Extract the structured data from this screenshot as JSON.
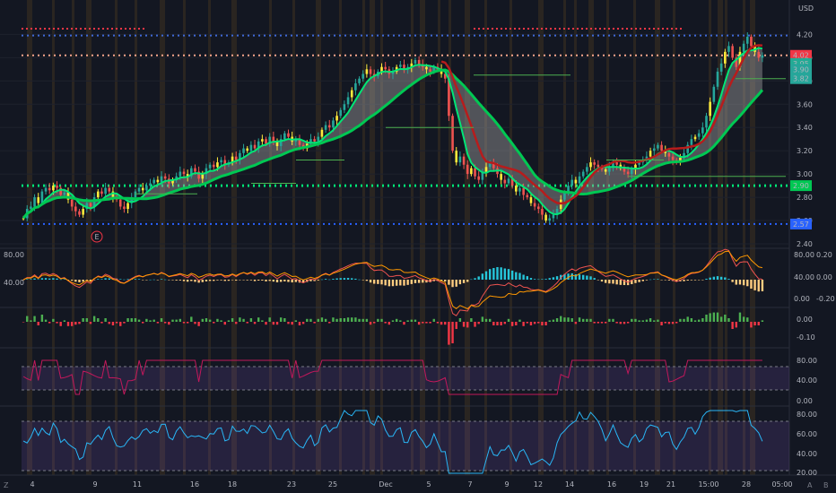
{
  "chart_data": {
    "type": "candlestick",
    "currency_label": "USD",
    "price_axis_ticks": [
      "4.20",
      "4.00",
      "3.80",
      "3.60",
      "3.40",
      "3.20",
      "3.00",
      "2.80",
      "2.60",
      "2.40"
    ],
    "price_tags": [
      {
        "label": "4.02",
        "value": 4.02,
        "color": "#f23645"
      },
      {
        "label": "3.95",
        "value": 3.95,
        "color": "#22ab94"
      },
      {
        "label": "3.90",
        "value": 3.9,
        "color": "#26a69a"
      },
      {
        "label": "3.82",
        "value": 3.82,
        "color": "#26a69a"
      },
      {
        "label": "2.90",
        "value": 2.9,
        "color": "#00c853"
      },
      {
        "label": "2.57",
        "value": 2.57,
        "color": "#2962ff"
      }
    ],
    "price_ylim": [
      2.4,
      4.28
    ],
    "candles_close": [
      2.62,
      2.7,
      2.72,
      2.8,
      2.75,
      2.85,
      2.88,
      2.86,
      2.9,
      2.88,
      2.82,
      2.84,
      2.78,
      2.72,
      2.68,
      2.65,
      2.7,
      2.75,
      2.72,
      2.8,
      2.85,
      2.83,
      2.88,
      2.85,
      2.8,
      2.78,
      2.72,
      2.7,
      2.75,
      2.8,
      2.85,
      2.88,
      2.86,
      2.9,
      2.92,
      2.95,
      2.93,
      2.98,
      2.96,
      2.92,
      2.95,
      2.98,
      3.02,
      3.0,
      2.98,
      3.05,
      3.02,
      2.96,
      3.0,
      3.05,
      3.08,
      3.06,
      3.1,
      3.12,
      3.08,
      3.1,
      3.15,
      3.12,
      3.18,
      3.22,
      3.2,
      3.25,
      3.22,
      3.28,
      3.3,
      3.26,
      3.32,
      3.28,
      3.24,
      3.3,
      3.35,
      3.32,
      3.28,
      3.3,
      3.25,
      3.22,
      3.26,
      3.3,
      3.28,
      3.32,
      3.38,
      3.42,
      3.4,
      3.46,
      3.5,
      3.55,
      3.6,
      3.66,
      3.72,
      3.78,
      3.82,
      3.86,
      3.9,
      3.86,
      3.84,
      3.88,
      3.92,
      3.9,
      3.86,
      3.88,
      3.92,
      3.94,
      3.9,
      3.92,
      3.95,
      3.98,
      3.94,
      3.92,
      3.9,
      3.88,
      3.92,
      3.9,
      3.86,
      3.82,
      3.5,
      3.2,
      3.1,
      3.15,
      3.08,
      3.0,
      3.05,
      2.98,
      2.95,
      3.02,
      3.06,
      3.1,
      3.05,
      3.0,
      2.95,
      2.92,
      2.96,
      2.9,
      2.85,
      2.88,
      2.82,
      2.8,
      2.75,
      2.72,
      2.7,
      2.65,
      2.6,
      2.62,
      2.65,
      2.7,
      2.78,
      2.84,
      2.9,
      2.95,
      2.92,
      2.98,
      3.02,
      3.06,
      3.1,
      3.08,
      3.06,
      3.04,
      3.02,
      3.06,
      3.1,
      3.08,
      3.05,
      3.02,
      3.0,
      3.04,
      3.08,
      3.1,
      3.12,
      3.15,
      3.2,
      3.22,
      3.25,
      3.2,
      3.18,
      3.15,
      3.12,
      3.1,
      3.14,
      3.18,
      3.25,
      3.3,
      3.32,
      3.35,
      3.4,
      3.5,
      3.62,
      3.75,
      3.88,
      3.95,
      4.05,
      4.1,
      4.0,
      3.92,
      4.05,
      4.12,
      4.18,
      4.1,
      4.05,
      4.0,
      4.02
    ],
    "series": [
      {
        "name": "ma-fast",
        "color": "#00e676"
      },
      {
        "name": "ma-slow",
        "color": "#00c853"
      },
      {
        "name": "ma-red",
        "color": "#b71c1c"
      }
    ],
    "horizontal_levels": [
      {
        "value": 4.19,
        "color": "#3f6ad8",
        "style": "dotted"
      },
      {
        "value": 4.02,
        "color": "#f7a58b",
        "style": "dotted"
      },
      {
        "value": 2.9,
        "color": "#00e676",
        "style": "dotted"
      },
      {
        "value": 2.57,
        "color": "#2962ff",
        "style": "dotted"
      }
    ],
    "event_marker": "E",
    "x_tick_labels": [
      "4",
      "9",
      "11",
      "16",
      "18",
      "23",
      "25",
      "Dec",
      "5",
      "7",
      "9",
      "12",
      "14",
      "16",
      "19",
      "21",
      "15:00",
      "28",
      "05:00"
    ],
    "panes": [
      {
        "name": "macd-lines",
        "left_ticks": [
          "80.00",
          "40.00"
        ],
        "right_ticks": [
          "0.20",
          "0.00",
          "-0.20"
        ],
        "right_extra_ticks": [
          "80.00",
          "40.00",
          "0.00"
        ]
      },
      {
        "name": "macd-histogram",
        "right_ticks": [
          "0.00",
          "-0.10"
        ]
      },
      {
        "name": "rsi-purple",
        "right_ticks": [
          "80.00",
          "40.00",
          "0.00"
        ]
      },
      {
        "name": "rsi-blue",
        "right_ticks": [
          "80.00",
          "60.00",
          "40.00",
          "20.00"
        ]
      }
    ]
  },
  "footer": {
    "left_icon": "Z",
    "right_a": "A",
    "right_b": "B"
  }
}
